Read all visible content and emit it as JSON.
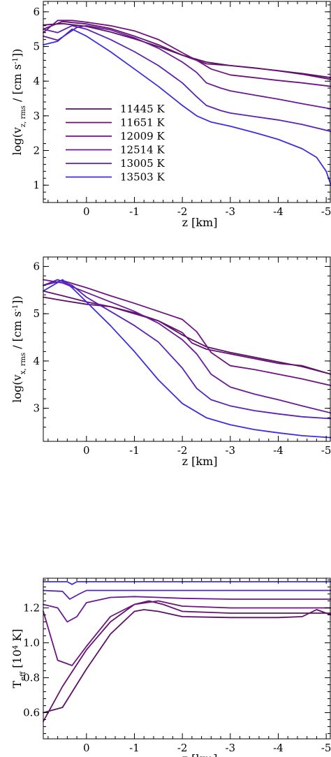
{
  "chart_data": [
    {
      "type": "line",
      "xlabel": "z [km]",
      "ylabel_main": "log(v",
      "ylabel_sub": "z, rms",
      "ylabel_rest": " / [cm s",
      "ylabel_sup": "-1",
      "ylabel_end": "])",
      "xlim": [
        0.9,
        -5.1
      ],
      "ylim": [
        0.5,
        6.3
      ],
      "x_ticks": [
        0,
        -1,
        -2,
        -3,
        -4,
        -5
      ],
      "x_tick_labels": [
        "0",
        "-1",
        "-2",
        "-3",
        "-4",
        "-5"
      ],
      "y_ticks": [
        1,
        2,
        3,
        4,
        5,
        6
      ],
      "y_tick_labels": [
        "1",
        "2",
        "3",
        "4",
        "5",
        "6"
      ],
      "legend": {
        "position": "lower-left",
        "entries": [
          "11445 K",
          "11651 K",
          "12009 K",
          "12514 K",
          "13005 K",
          "13503 K"
        ]
      },
      "series": [
        {
          "name": "11445 K",
          "color": "#5a1068",
          "x": [
            0.9,
            0.5,
            0,
            -0.5,
            -1,
            -1.5,
            -2,
            -2.5,
            -3,
            -3.5,
            -4,
            -4.5,
            -5.1
          ],
          "y": [
            5.62,
            5.66,
            5.58,
            5.42,
            5.22,
            5.0,
            4.75,
            4.55,
            4.45,
            4.38,
            4.3,
            4.22,
            4.1
          ]
        },
        {
          "name": "11651 K",
          "color": "#64126e",
          "x": [
            0.9,
            0.5,
            0,
            -0.5,
            -1,
            -1.5,
            -2,
            -2.5,
            -3,
            -3.5,
            -4,
            -4.5,
            -5.1
          ],
          "y": [
            5.5,
            5.72,
            5.65,
            5.52,
            5.3,
            5.05,
            4.75,
            4.5,
            4.45,
            4.38,
            4.3,
            4.2,
            4.05
          ]
        },
        {
          "name": "12009 K",
          "color": "#6e1481",
          "x": [
            0.9,
            0.6,
            0.3,
            0,
            -0.5,
            -1,
            -1.5,
            -2,
            -2.3,
            -2.6,
            -3,
            -3.5,
            -4,
            -4.5,
            -5.1
          ],
          "y": [
            5.4,
            5.75,
            5.75,
            5.7,
            5.6,
            5.45,
            5.2,
            4.82,
            4.6,
            4.35,
            4.18,
            4.1,
            4.02,
            3.95,
            3.85
          ]
        },
        {
          "name": "12514 K",
          "color": "#6a1a96",
          "x": [
            0.9,
            0.6,
            0.2,
            0,
            -0.5,
            -1,
            -1.5,
            -2,
            -2.3,
            -2.5,
            -2.8,
            -3,
            -3.5,
            -4,
            -4.5,
            -5.1
          ],
          "y": [
            5.3,
            5.18,
            5.55,
            5.6,
            5.48,
            5.25,
            4.95,
            4.55,
            4.25,
            3.95,
            3.8,
            3.72,
            3.6,
            3.48,
            3.35,
            3.2
          ]
        },
        {
          "name": "13005 K",
          "color": "#5a22b6",
          "x": [
            0.9,
            0.6,
            0.3,
            0,
            -0.5,
            -1,
            -1.5,
            -2,
            -2.3,
            -2.5,
            -2.8,
            -3,
            -3.5,
            -4,
            -4.5,
            -5.1
          ],
          "y": [
            5.5,
            5.4,
            5.6,
            5.5,
            5.2,
            4.85,
            4.45,
            3.95,
            3.55,
            3.3,
            3.15,
            3.08,
            2.98,
            2.88,
            2.75,
            2.55
          ]
        },
        {
          "name": "13503 K",
          "color": "#3c2de3",
          "x": [
            0.9,
            0.6,
            0.3,
            0,
            -0.5,
            -1,
            -1.5,
            -2,
            -2.3,
            -2.6,
            -3,
            -3.5,
            -4,
            -4.5,
            -4.8,
            -5.0,
            -5.1
          ],
          "y": [
            5.05,
            5.15,
            5.5,
            5.3,
            4.85,
            4.35,
            3.85,
            3.3,
            3.0,
            2.82,
            2.7,
            2.52,
            2.32,
            2.05,
            1.8,
            1.4,
            1.0
          ]
        }
      ]
    },
    {
      "type": "line",
      "xlabel": "z [km]",
      "ylabel_main": "log(v",
      "ylabel_sub": "x, rms",
      "ylabel_rest": " / [cm s",
      "ylabel_sup": "-1",
      "ylabel_end": "])",
      "xlim": [
        0.9,
        -5.1
      ],
      "ylim": [
        2.3,
        6.2
      ],
      "x_ticks": [
        0,
        -1,
        -2,
        -3,
        -4,
        -5
      ],
      "x_tick_labels": [
        "0",
        "-1",
        "-2",
        "-3",
        "-4",
        "-5"
      ],
      "y_ticks": [
        3,
        4,
        5,
        6
      ],
      "y_tick_labels": [
        "3",
        "4",
        "5",
        "6"
      ],
      "series": [
        {
          "name": "11445 K",
          "color": "#5a1068",
          "x": [
            0.9,
            0.5,
            0,
            -0.5,
            -1,
            -1.5,
            -2,
            -2.5,
            -3,
            -3.5,
            -4,
            -4.5,
            -5.1
          ],
          "y": [
            5.35,
            5.28,
            5.2,
            5.15,
            5.02,
            4.85,
            4.55,
            4.3,
            4.18,
            4.08,
            3.98,
            3.88,
            3.72
          ]
        },
        {
          "name": "11651 K",
          "color": "#64126e",
          "x": [
            0.9,
            0.5,
            0,
            -0.5,
            -1,
            -1.5,
            -2,
            -2.2,
            -2.5,
            -3,
            -3.5,
            -4,
            -4.5,
            -5.1
          ],
          "y": [
            5.48,
            5.38,
            5.25,
            5.15,
            5.0,
            4.85,
            4.6,
            4.38,
            4.25,
            4.15,
            4.05,
            3.95,
            3.9,
            3.72
          ]
        },
        {
          "name": "12009 K",
          "color": "#6e1481",
          "x": [
            0.9,
            0.5,
            0,
            -0.5,
            -1,
            -1.5,
            -2,
            -2.3,
            -2.6,
            -3,
            -3.5,
            -4,
            -4.5,
            -5.1
          ],
          "y": [
            5.6,
            5.7,
            5.55,
            5.38,
            5.22,
            5.05,
            4.88,
            4.62,
            4.18,
            3.9,
            3.82,
            3.72,
            3.62,
            3.48
          ]
        },
        {
          "name": "12514 K",
          "color": "#6a1a96",
          "x": [
            0.9,
            0.5,
            0,
            -0.5,
            -1,
            -1.5,
            -2,
            -2.3,
            -2.6,
            -3,
            -3.5,
            -4,
            -4.5,
            -5.1
          ],
          "y": [
            5.72,
            5.65,
            5.45,
            5.25,
            5.05,
            4.8,
            4.45,
            4.15,
            3.72,
            3.45,
            3.3,
            3.18,
            3.05,
            2.9
          ]
        },
        {
          "name": "13005 K",
          "color": "#5a22b6",
          "x": [
            0.9,
            0.6,
            0.3,
            0,
            -0.5,
            -1,
            -1.5,
            -2,
            -2.3,
            -2.6,
            -3,
            -3.5,
            -4,
            -4.5,
            -5.1
          ],
          "y": [
            5.6,
            5.72,
            5.6,
            5.35,
            5.05,
            4.75,
            4.4,
            3.85,
            3.42,
            3.18,
            3.05,
            2.95,
            2.88,
            2.82,
            2.78
          ]
        },
        {
          "name": "13503 K",
          "color": "#3c2de3",
          "x": [
            0.9,
            0.5,
            0.3,
            0,
            -0.5,
            -1,
            -1.5,
            -2,
            -2.5,
            -3,
            -3.5,
            -4,
            -4.5,
            -5.1
          ],
          "y": [
            5.48,
            5.72,
            5.55,
            5.25,
            4.75,
            4.2,
            3.6,
            3.1,
            2.8,
            2.65,
            2.55,
            2.48,
            2.42,
            2.38
          ]
        }
      ]
    },
    {
      "type": "line",
      "xlabel": "z [km]",
      "ylabel_main": "T",
      "ylabel_sub": "eff",
      "ylabel_rest": " [10",
      "ylabel_sup": "4",
      "ylabel_end": " K]",
      "xlim": [
        0.9,
        -5.1
      ],
      "ylim": [
        0.45,
        1.37
      ],
      "x_ticks": [
        0,
        -1,
        -2,
        -3,
        -4,
        -5
      ],
      "x_tick_labels": [
        "0",
        "-1",
        "-2",
        "-3",
        "-4",
        "-5"
      ],
      "y_ticks": [
        0.6,
        0.8,
        1.0,
        1.2
      ],
      "y_tick_labels": [
        "0.6",
        "0.8",
        "1.0",
        "1.2"
      ],
      "series": [
        {
          "name": "11445 K",
          "color": "#5a1068",
          "x": [
            0.9,
            0.5,
            0,
            -0.5,
            -1,
            -1.2,
            -1.5,
            -2,
            -3,
            -4,
            -4.5,
            -4.8,
            -5.1
          ],
          "y": [
            0.6,
            0.63,
            0.85,
            1.05,
            1.18,
            1.19,
            1.18,
            1.15,
            1.145,
            1.145,
            1.15,
            1.19,
            1.16
          ]
        },
        {
          "name": "11651 K",
          "color": "#64126e",
          "x": [
            0.9,
            0.5,
            0,
            -0.5,
            -1,
            -1.3,
            -1.6,
            -2,
            -3,
            -4,
            -5.1
          ],
          "y": [
            0.55,
            0.75,
            0.96,
            1.12,
            1.22,
            1.24,
            1.22,
            1.18,
            1.17,
            1.17,
            1.17
          ]
        },
        {
          "name": "12009 K",
          "color": "#6e1481",
          "x": [
            0.9,
            0.6,
            0.3,
            0,
            -0.5,
            -1,
            -1.5,
            -2,
            -3,
            -4,
            -5.1
          ],
          "y": [
            1.18,
            0.9,
            0.87,
            0.98,
            1.15,
            1.22,
            1.24,
            1.21,
            1.2,
            1.2,
            1.2
          ]
        },
        {
          "name": "12514 K",
          "color": "#6a1a96",
          "x": [
            0.9,
            0.6,
            0.4,
            0.2,
            0,
            -0.5,
            -1,
            -1.5,
            -2,
            -3,
            -4,
            -5.1
          ],
          "y": [
            1.22,
            1.2,
            1.12,
            1.15,
            1.23,
            1.26,
            1.265,
            1.26,
            1.255,
            1.25,
            1.25,
            1.25
          ]
        },
        {
          "name": "13005 K",
          "color": "#5a22b6",
          "x": [
            0.9,
            0.5,
            0.35,
            0.15,
            0,
            -0.5,
            -1,
            -2,
            -3,
            -4,
            -5.1
          ],
          "y": [
            1.3,
            1.295,
            1.25,
            1.28,
            1.3,
            1.3,
            1.3,
            1.3,
            1.3,
            1.3,
            1.3
          ]
        },
        {
          "name": "13503 K",
          "color": "#3c2de3",
          "x": [
            0.9,
            0.4,
            0.3,
            0.2,
            0,
            -1,
            -2,
            -3,
            -4,
            -5.1
          ],
          "y": [
            1.35,
            1.35,
            1.335,
            1.35,
            1.35,
            1.35,
            1.35,
            1.35,
            1.35,
            1.35
          ]
        }
      ]
    }
  ]
}
